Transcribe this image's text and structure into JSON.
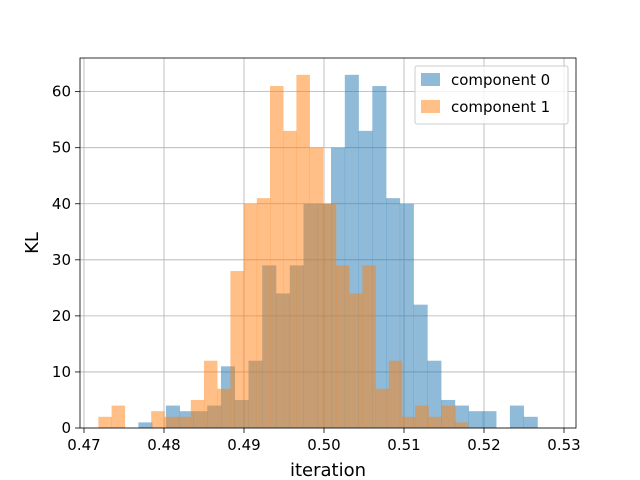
{
  "chart_data": {
    "type": "bar",
    "subtype": "overlaid-histogram",
    "title": "",
    "xlabel": "iteration",
    "ylabel": "KL",
    "xlim": [
      0.4695,
      0.5315
    ],
    "ylim": [
      0,
      66
    ],
    "grid": true,
    "legend_position": "top-right",
    "x_ticks": [
      0.47,
      0.48,
      0.49,
      0.5,
      0.51,
      0.52,
      0.53
    ],
    "x_tick_labels": [
      "0.47",
      "0.48",
      "0.49",
      "0.50",
      "0.51",
      "0.52",
      "0.53"
    ],
    "y_ticks": [
      0,
      10,
      20,
      30,
      40,
      50,
      60
    ],
    "y_tick_labels": [
      "0",
      "10",
      "20",
      "30",
      "40",
      "50",
      "60"
    ],
    "series": [
      {
        "name": "component 0",
        "color": "#1f77b4",
        "opacity": 0.5,
        "bin_start": 0.4768,
        "bin_width": 0.00172,
        "values": [
          1,
          0,
          4,
          3,
          3,
          4,
          11,
          5,
          12,
          29,
          24,
          29,
          40,
          40,
          50,
          63,
          53,
          61,
          41,
          40,
          22,
          12,
          5,
          4,
          3,
          3,
          0,
          4,
          2
        ]
      },
      {
        "name": "component 1",
        "color": "#ff7f0e",
        "opacity": 0.5,
        "bin_start": 0.4718,
        "bin_width": 0.00165,
        "values": [
          2,
          4,
          0,
          0,
          3,
          2,
          2,
          5,
          12,
          7,
          28,
          40,
          41,
          61,
          53,
          63,
          50,
          40,
          29,
          24,
          29,
          7,
          12,
          2,
          4,
          2,
          4,
          1
        ]
      }
    ]
  }
}
